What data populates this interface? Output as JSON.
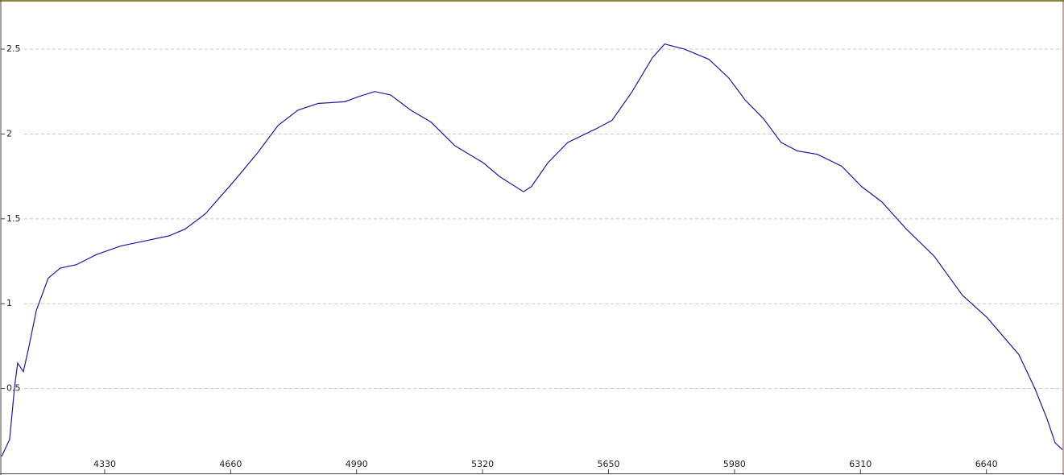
{
  "chart_data": {
    "type": "line",
    "x": [
      4060,
      4081,
      4094,
      4102,
      4117,
      4130,
      4151,
      4182,
      4214,
      4256,
      4309,
      4372,
      4436,
      4499,
      4541,
      4594,
      4668,
      4731,
      4784,
      4836,
      4889,
      4959,
      4995,
      5037,
      5079,
      5132,
      5185,
      5248,
      5322,
      5364,
      5427,
      5448,
      5491,
      5543,
      5617,
      5659,
      5712,
      5765,
      5797,
      5849,
      5913,
      5965,
      6008,
      6056,
      6102,
      6145,
      6197,
      6261,
      6313,
      6366,
      6430,
      6503,
      6577,
      6641,
      6725,
      6767,
      6799,
      6820,
      6839
    ],
    "series": [
      {
        "color": "#1a1aa0",
        "values": [
          0.1,
          0.2,
          0.51,
          0.65,
          0.6,
          0.73,
          0.96,
          1.15,
          1.21,
          1.23,
          1.29,
          1.34,
          1.37,
          1.4,
          1.44,
          1.53,
          1.72,
          1.89,
          2.05,
          2.14,
          2.18,
          2.19,
          2.22,
          2.25,
          2.23,
          2.14,
          2.07,
          1.93,
          1.83,
          1.75,
          1.66,
          1.69,
          1.83,
          1.95,
          2.03,
          2.08,
          2.25,
          2.45,
          2.53,
          2.5,
          2.44,
          2.33,
          2.2,
          2.09,
          1.95,
          1.9,
          1.88,
          1.81,
          1.69,
          1.6,
          1.44,
          1.28,
          1.05,
          0.92,
          0.7,
          0.5,
          0.32,
          0.18,
          0.14
        ]
      }
    ],
    "xlim": [
      4060,
      6839
    ],
    "xticks": [
      4330,
      4660,
      4990,
      5320,
      5650,
      5980,
      6310,
      6640
    ],
    "ylim": [
      0,
      2.78
    ],
    "yticks": [
      0.5,
      1,
      1.5,
      2,
      2.5
    ],
    "grid": true
  }
}
